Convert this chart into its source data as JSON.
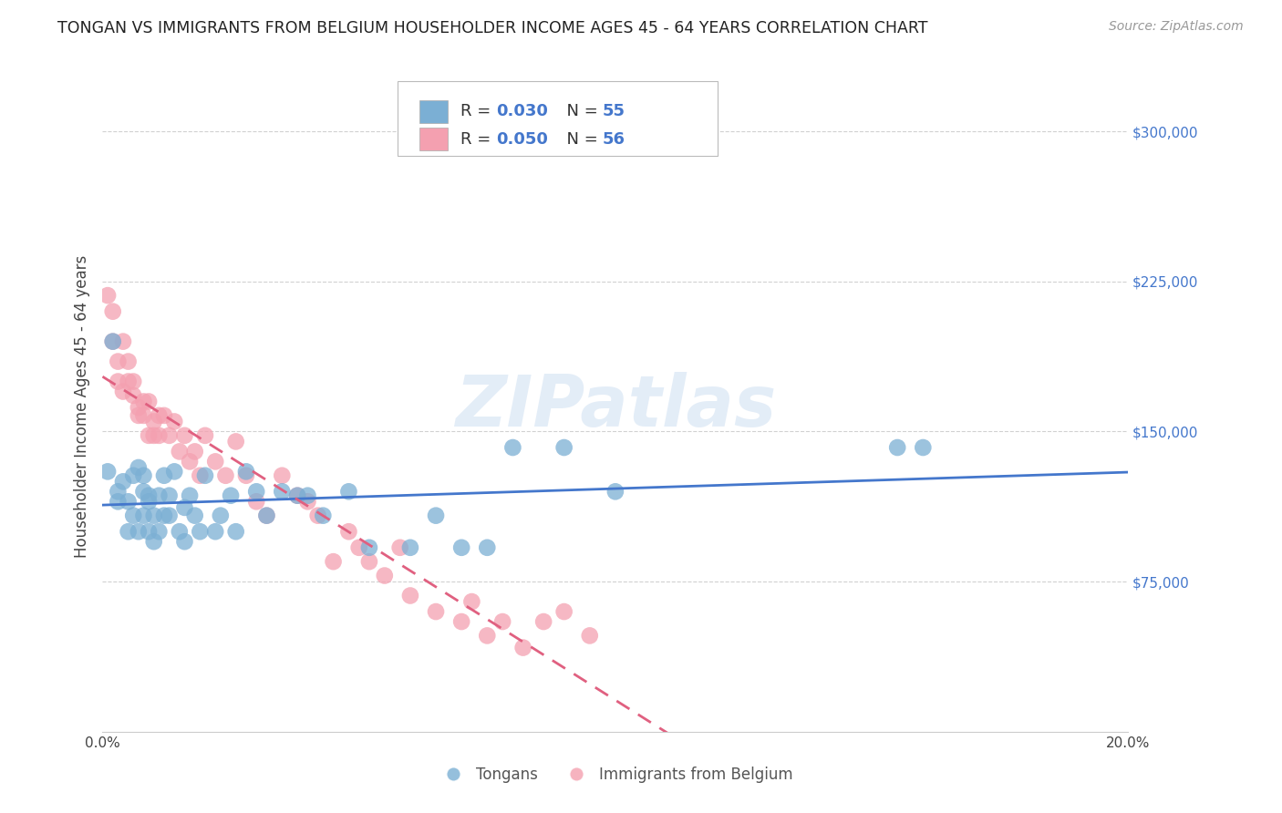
{
  "title": "TONGAN VS IMMIGRANTS FROM BELGIUM HOUSEHOLDER INCOME AGES 45 - 64 YEARS CORRELATION CHART",
  "source": "Source: ZipAtlas.com",
  "ylabel": "Householder Income Ages 45 - 64 years",
  "xlim": [
    0.0,
    0.2
  ],
  "ylim": [
    0,
    325000
  ],
  "xticks": [
    0.0,
    0.02,
    0.04,
    0.06,
    0.08,
    0.1,
    0.12,
    0.14,
    0.16,
    0.18,
    0.2
  ],
  "ytick_positions": [
    75000,
    150000,
    225000,
    300000
  ],
  "ytick_labels": [
    "$75,000",
    "$150,000",
    "$225,000",
    "$300,000"
  ],
  "grid_color": "#cccccc",
  "background_color": "#ffffff",
  "tongan_color": "#7bafd4",
  "belgium_color": "#f4a0b0",
  "tongan_line_color": "#4477cc",
  "belgium_line_color": "#e06080",
  "legend_R_tongan": "0.030",
  "legend_N_tongan": "55",
  "legend_R_belgium": "0.050",
  "legend_N_belgium": "56",
  "watermark": "ZIPatlas",
  "tongan_x": [
    0.001,
    0.002,
    0.003,
    0.003,
    0.004,
    0.005,
    0.005,
    0.006,
    0.006,
    0.007,
    0.007,
    0.008,
    0.008,
    0.008,
    0.009,
    0.009,
    0.009,
    0.01,
    0.01,
    0.011,
    0.011,
    0.012,
    0.012,
    0.013,
    0.013,
    0.014,
    0.015,
    0.016,
    0.016,
    0.017,
    0.018,
    0.019,
    0.02,
    0.022,
    0.023,
    0.025,
    0.026,
    0.028,
    0.03,
    0.032,
    0.035,
    0.038,
    0.04,
    0.043,
    0.048,
    0.052,
    0.06,
    0.065,
    0.07,
    0.075,
    0.08,
    0.09,
    0.1,
    0.155,
    0.16
  ],
  "tongan_y": [
    130000,
    195000,
    120000,
    115000,
    125000,
    100000,
    115000,
    108000,
    128000,
    100000,
    132000,
    120000,
    108000,
    128000,
    115000,
    100000,
    118000,
    108000,
    95000,
    118000,
    100000,
    108000,
    128000,
    108000,
    118000,
    130000,
    100000,
    95000,
    112000,
    118000,
    108000,
    100000,
    128000,
    100000,
    108000,
    118000,
    100000,
    130000,
    120000,
    108000,
    120000,
    118000,
    118000,
    108000,
    120000,
    92000,
    92000,
    108000,
    92000,
    92000,
    142000,
    142000,
    120000,
    142000,
    142000
  ],
  "belgium_x": [
    0.001,
    0.002,
    0.002,
    0.003,
    0.003,
    0.004,
    0.004,
    0.005,
    0.005,
    0.006,
    0.006,
    0.007,
    0.007,
    0.008,
    0.008,
    0.009,
    0.009,
    0.01,
    0.01,
    0.011,
    0.011,
    0.012,
    0.013,
    0.014,
    0.015,
    0.016,
    0.017,
    0.018,
    0.019,
    0.02,
    0.022,
    0.024,
    0.026,
    0.028,
    0.03,
    0.032,
    0.035,
    0.038,
    0.04,
    0.042,
    0.045,
    0.048,
    0.05,
    0.052,
    0.055,
    0.058,
    0.06,
    0.065,
    0.07,
    0.072,
    0.075,
    0.078,
    0.082,
    0.086,
    0.09,
    0.095
  ],
  "belgium_y": [
    218000,
    210000,
    195000,
    185000,
    175000,
    195000,
    170000,
    185000,
    175000,
    168000,
    175000,
    162000,
    158000,
    165000,
    158000,
    165000,
    148000,
    155000,
    148000,
    158000,
    148000,
    158000,
    148000,
    155000,
    140000,
    148000,
    135000,
    140000,
    128000,
    148000,
    135000,
    128000,
    145000,
    128000,
    115000,
    108000,
    128000,
    118000,
    115000,
    108000,
    85000,
    100000,
    92000,
    85000,
    78000,
    92000,
    68000,
    60000,
    55000,
    65000,
    48000,
    55000,
    42000,
    55000,
    60000,
    48000
  ]
}
